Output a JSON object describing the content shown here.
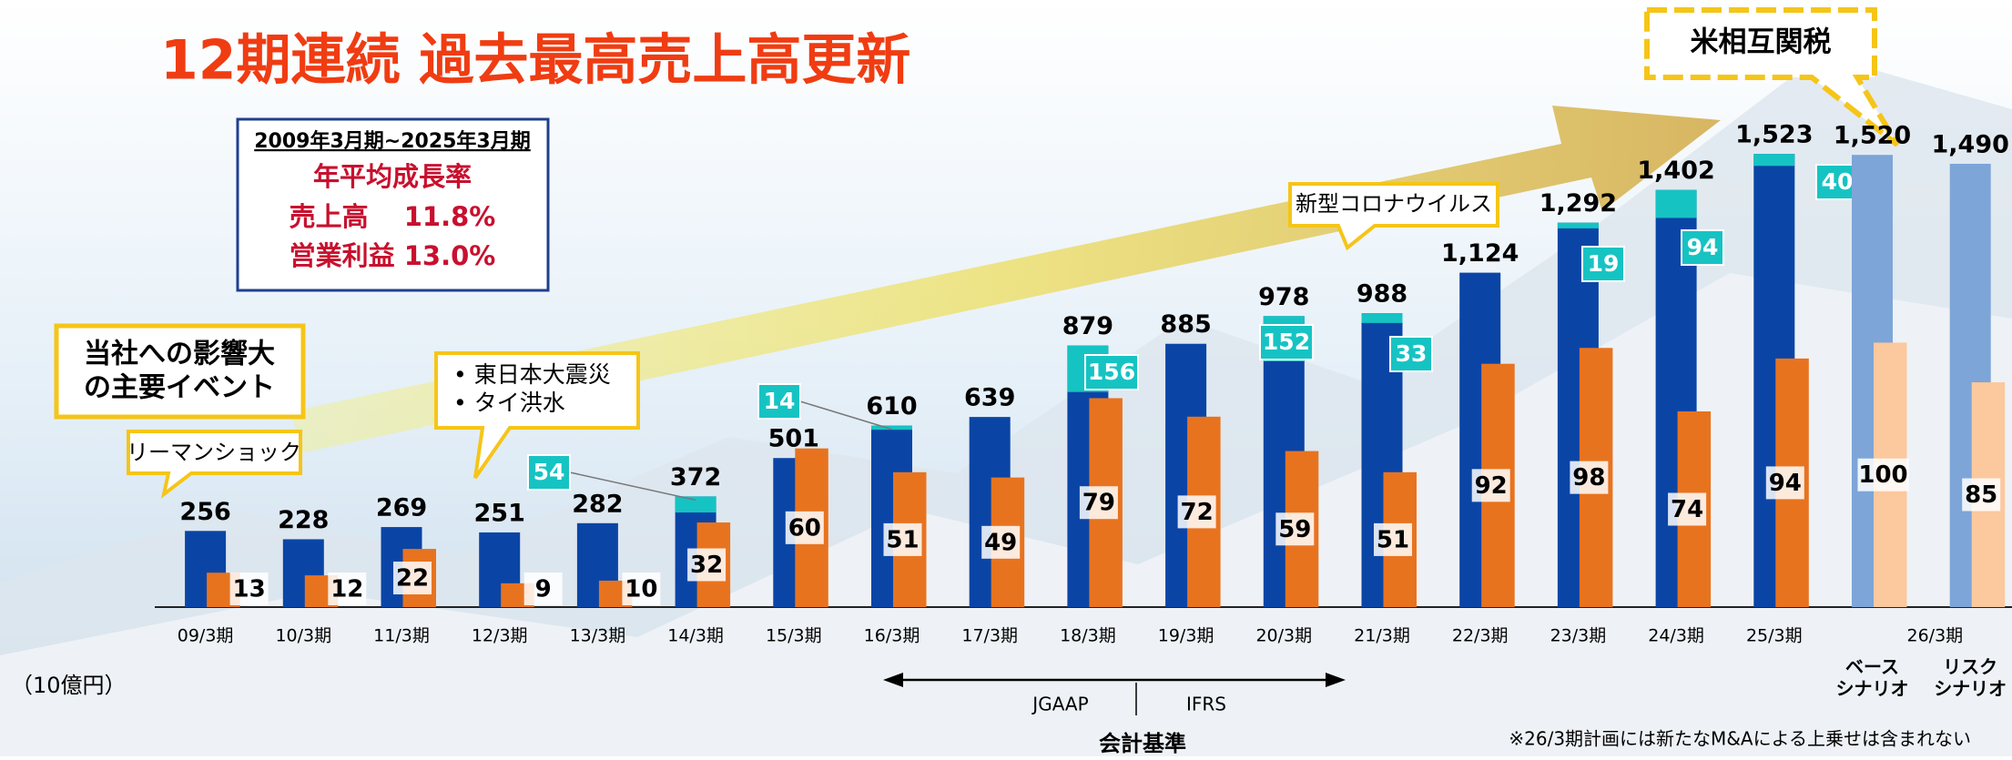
{
  "title": "12期連続 過去最高売上高更新",
  "growth_box": {
    "period": "2009年3月期~2025年3月期",
    "heading": "年平均成長率",
    "sales": "売上高　 11.8%",
    "profit": "営業利益 13.0%"
  },
  "events_label": [
    "当社への影響大",
    "の主要イベント"
  ],
  "annotations": {
    "lehman": "リーマンショック",
    "quake": [
      "• 東日本大震災",
      "• タイ洪水"
    ],
    "covid": "新型コロナウイルス",
    "tariff": "米相互関税"
  },
  "chart_data": {
    "type": "bar",
    "unit": "（10億円）",
    "categories": [
      "09/3期",
      "10/3期",
      "11/3期",
      "12/3期",
      "13/3期",
      "14/3期",
      "15/3期",
      "16/3期",
      "17/3期",
      "18/3期",
      "19/3期",
      "20/3期",
      "21/3期",
      "22/3期",
      "23/3期",
      "24/3期",
      "25/3期",
      [
        "ベース",
        "シナリオ"
      ],
      [
        "リスク",
        "シナリオ"
      ]
    ],
    "group_label": "26/3期",
    "series": [
      {
        "colors": [
          "#0a45a6",
          "#0a45a6",
          "#0a45a6",
          "#0a45a6",
          "#0a45a6",
          "#0a45a6",
          "#0a45a6",
          "#0a45a6",
          "#0a45a6",
          "#0a45a6",
          "#0a45a6",
          "#0a45a6",
          "#0a45a6",
          "#0a45a6",
          "#0a45a6",
          "#0a45a6",
          "#0a45a6",
          "#7da5d8",
          "#7da5d8"
        ],
        "values": [
          256,
          228,
          269,
          251,
          282,
          372,
          501,
          610,
          639,
          879,
          885,
          978,
          988,
          1124,
          1292,
          1402,
          1523,
          1520,
          1490
        ],
        "value_labels": [
          "256",
          "228",
          "269",
          "251",
          "282",
          "372",
          "501",
          "610",
          "639",
          "879",
          "885",
          "978",
          "988",
          "1,124",
          "1,292",
          "1,402",
          "1,523",
          "1,520",
          "1,490"
        ]
      },
      {
        "color": "#16c3c3",
        "values": [
          null,
          null,
          null,
          null,
          null,
          54,
          null,
          14,
          null,
          156,
          null,
          152,
          33,
          null,
          19,
          94,
          40,
          null,
          null
        ]
      },
      {
        "colors": [
          "#e8731f",
          "#e8731f",
          "#e8731f",
          "#e8731f",
          "#e8731f",
          "#e8731f",
          "#e8731f",
          "#e8731f",
          "#e8731f",
          "#e8731f",
          "#e8731f",
          "#e8731f",
          "#e8731f",
          "#e8731f",
          "#e8731f",
          "#e8731f",
          "#e8731f",
          "#fcc89e",
          "#fcc89e"
        ],
        "axis": "y2",
        "values": [
          13,
          12,
          22,
          9,
          10,
          32,
          60,
          51,
          49,
          79,
          72,
          59,
          51,
          92,
          98,
          74,
          94,
          100,
          85
        ]
      }
    ],
    "ylim": [
      0,
      1600
    ],
    "y2lim": [
      0,
      180
    ]
  },
  "accounting": {
    "title": "会計基準",
    "left": "JGAAP",
    "right": "IFRS"
  },
  "footnote": "※26/3期計画には新たなM&Aによる上乗せは含まれない"
}
